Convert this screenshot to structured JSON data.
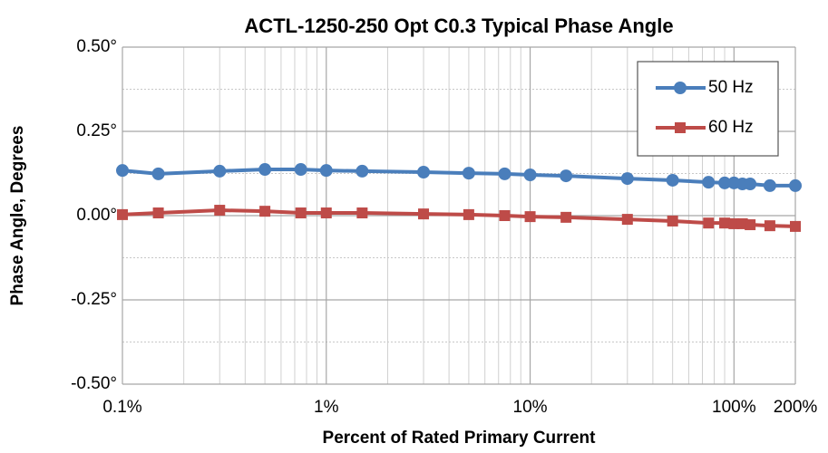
{
  "chart_data": {
    "type": "line",
    "title": "ACTL-1250-250 Opt C0.3 Typical Phase Angle",
    "x_label": "Percent of Rated Primary Current",
    "y_label": "Phase Angle, Degrees",
    "x": [
      0.1,
      0.15,
      0.3,
      0.5,
      0.75,
      1,
      1.5,
      3,
      5,
      7.5,
      10,
      15,
      30,
      50,
      75,
      90,
      100,
      110,
      120,
      150,
      200
    ],
    "series": [
      {
        "name": "50 Hz",
        "color": "#4a7ebb",
        "marker": "circle",
        "values": [
          0.134,
          0.124,
          0.132,
          0.137,
          0.137,
          0.134,
          0.132,
          0.129,
          0.126,
          0.124,
          0.121,
          0.118,
          0.11,
          0.105,
          0.099,
          0.097,
          0.097,
          0.094,
          0.094,
          0.089,
          0.089
        ]
      },
      {
        "name": "60 Hz",
        "color": "#be4b48",
        "marker": "square",
        "values": [
          0.003,
          0.008,
          0.016,
          0.013,
          0.008,
          0.008,
          0.008,
          0.005,
          0.003,
          0.0,
          -0.003,
          -0.005,
          -0.011,
          -0.016,
          -0.022,
          -0.022,
          -0.024,
          -0.024,
          -0.027,
          -0.03,
          -0.032
        ]
      }
    ],
    "x_log": true,
    "xlim": [
      0.1,
      200
    ],
    "xticks": [
      {
        "value": 0.1,
        "label": "0.1%"
      },
      {
        "value": 1,
        "label": "1%"
      },
      {
        "value": 10,
        "label": "10%"
      },
      {
        "value": 100,
        "label": "100%"
      },
      {
        "value": 200,
        "label": "200%"
      }
    ],
    "x_minor_ticks": [
      0.2,
      0.3,
      0.4,
      0.5,
      0.6,
      0.7,
      0.8,
      0.9,
      2,
      3,
      4,
      5,
      6,
      7,
      8,
      9,
      20,
      30,
      40,
      50,
      60,
      70,
      80,
      90
    ],
    "ylim": [
      -0.5,
      0.5
    ],
    "yticks": [
      {
        "value": -0.5,
        "label": "-0.50°"
      },
      {
        "value": -0.25,
        "label": "-0.25°"
      },
      {
        "value": 0,
        "label": "0.00°"
      },
      {
        "value": 0.25,
        "label": "0.25°"
      },
      {
        "value": 0.5,
        "label": "0.50°"
      }
    ],
    "y_minor_ticks": [
      -0.375,
      -0.125,
      0.125,
      0.375
    ],
    "grid": true,
    "legend": "upper right"
  }
}
